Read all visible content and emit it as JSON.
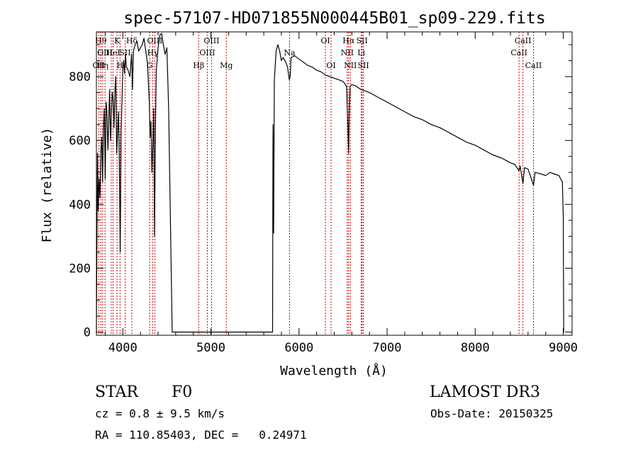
{
  "chart_data": {
    "type": "line",
    "title": "spec-57107-HD071855N000445B01_sp09-229.fits",
    "xlabel": "Wavelength (Å)",
    "ylabel": "Flux (relative)",
    "xlim": [
      3700,
      9100
    ],
    "ylim": [
      -10,
      940
    ],
    "x_ticks": [
      4000,
      5000,
      6000,
      7000,
      8000,
      9000
    ],
    "x_tick_labels": [
      "4000",
      "5000",
      "6000",
      "7000",
      "8000",
      "9000"
    ],
    "y_ticks": [
      0,
      200,
      400,
      600,
      800
    ],
    "y_tick_labels": [
      "0",
      "200",
      "400",
      "600",
      "800"
    ],
    "series": [
      {
        "name": "spectrum",
        "points": [
          [
            3700,
            0
          ],
          [
            3705,
            240
          ],
          [
            3712,
            560
          ],
          [
            3720,
            380
          ],
          [
            3730,
            480
          ],
          [
            3740,
            420
          ],
          [
            3750,
            560
          ],
          [
            3760,
            610
          ],
          [
            3770,
            470
          ],
          [
            3780,
            640
          ],
          [
            3790,
            700
          ],
          [
            3800,
            480
          ],
          [
            3810,
            720
          ],
          [
            3820,
            690
          ],
          [
            3830,
            570
          ],
          [
            3840,
            660
          ],
          [
            3850,
            760
          ],
          [
            3860,
            600
          ],
          [
            3870,
            680
          ],
          [
            3880,
            750
          ],
          [
            3890,
            730
          ],
          [
            3900,
            640
          ],
          [
            3910,
            760
          ],
          [
            3920,
            800
          ],
          [
            3930,
            560
          ],
          [
            3940,
            620
          ],
          [
            3950,
            690
          ],
          [
            3960,
            540
          ],
          [
            3970,
            250
          ],
          [
            3980,
            620
          ],
          [
            3990,
            720
          ],
          [
            4000,
            820
          ],
          [
            4010,
            850
          ],
          [
            4020,
            810
          ],
          [
            4030,
            870
          ],
          [
            4040,
            830
          ],
          [
            4060,
            820
          ],
          [
            4080,
            800
          ],
          [
            4100,
            870
          ],
          [
            4110,
            760
          ],
          [
            4120,
            880
          ],
          [
            4140,
            900
          ],
          [
            4160,
            910
          ],
          [
            4180,
            880
          ],
          [
            4200,
            890
          ],
          [
            4220,
            900
          ],
          [
            4240,
            920
          ],
          [
            4260,
            880
          ],
          [
            4280,
            840
          ],
          [
            4300,
            720
          ],
          [
            4310,
            610
          ],
          [
            4320,
            660
          ],
          [
            4330,
            500
          ],
          [
            4340,
            580
          ],
          [
            4350,
            700
          ],
          [
            4360,
            300
          ],
          [
            4370,
            650
          ],
          [
            4380,
            820
          ],
          [
            4400,
            890
          ],
          [
            4420,
            930
          ],
          [
            4440,
            935
          ],
          [
            4460,
            900
          ],
          [
            4480,
            870
          ],
          [
            4500,
            890
          ],
          [
            4520,
            700
          ],
          [
            4540,
            350
          ],
          [
            4560,
            0
          ],
          [
            5700,
            0
          ],
          [
            5705,
            650
          ],
          [
            5712,
            310
          ],
          [
            5720,
            790
          ],
          [
            5740,
            880
          ],
          [
            5760,
            900
          ],
          [
            5780,
            880
          ],
          [
            5800,
            850
          ],
          [
            5820,
            860
          ],
          [
            5850,
            845
          ],
          [
            5870,
            830
          ],
          [
            5890,
            790
          ],
          [
            5900,
            800
          ],
          [
            5910,
            860
          ],
          [
            5950,
            865
          ],
          [
            6000,
            855
          ],
          [
            6050,
            845
          ],
          [
            6100,
            835
          ],
          [
            6150,
            830
          ],
          [
            6200,
            820
          ],
          [
            6250,
            815
          ],
          [
            6300,
            805
          ],
          [
            6350,
            800
          ],
          [
            6400,
            795
          ],
          [
            6450,
            790
          ],
          [
            6500,
            785
          ],
          [
            6540,
            770
          ],
          [
            6555,
            640
          ],
          [
            6563,
            560
          ],
          [
            6570,
            680
          ],
          [
            6580,
            770
          ],
          [
            6600,
            775
          ],
          [
            6650,
            770
          ],
          [
            6700,
            760
          ],
          [
            6750,
            755
          ],
          [
            6800,
            750
          ],
          [
            6900,
            735
          ],
          [
            7000,
            720
          ],
          [
            7100,
            705
          ],
          [
            7200,
            690
          ],
          [
            7300,
            675
          ],
          [
            7400,
            665
          ],
          [
            7500,
            650
          ],
          [
            7600,
            640
          ],
          [
            7700,
            625
          ],
          [
            7800,
            610
          ],
          [
            7900,
            595
          ],
          [
            8000,
            585
          ],
          [
            8100,
            570
          ],
          [
            8200,
            555
          ],
          [
            8300,
            545
          ],
          [
            8400,
            530
          ],
          [
            8450,
            525
          ],
          [
            8498,
            505
          ],
          [
            8510,
            520
          ],
          [
            8542,
            465
          ],
          [
            8560,
            515
          ],
          [
            8600,
            510
          ],
          [
            8662,
            460
          ],
          [
            8680,
            500
          ],
          [
            8750,
            495
          ],
          [
            8800,
            490
          ],
          [
            8850,
            500
          ],
          [
            8900,
            495
          ],
          [
            8950,
            490
          ],
          [
            8990,
            470
          ],
          [
            9000,
            360
          ],
          [
            9005,
            0
          ]
        ]
      }
    ],
    "lines": [
      {
        "wavelength": 3727,
        "label": "OII",
        "row": 2
      },
      {
        "wavelength": 3751,
        "label": "Hθ",
        "row": 0
      },
      {
        "wavelength": 3771,
        "label": "Hη",
        "row": 2
      },
      {
        "wavelength": 3798,
        "label": "OIII",
        "row": 1
      },
      {
        "wavelength": 3869,
        "label": "",
        "row": 1
      },
      {
        "wavelength": 3889,
        "label": "HeI",
        "row": 1
      },
      {
        "wavelength": 3934,
        "label": "K",
        "row": 0
      },
      {
        "wavelength": 3968,
        "label": "H",
        "row": 2
      },
      {
        "wavelength": 4026,
        "label": "SII",
        "row": 1
      },
      {
        "wavelength": 4102,
        "label": "Hδ",
        "row": 0
      },
      {
        "wavelength": 4304,
        "label": "G",
        "row": 2
      },
      {
        "wavelength": 4340,
        "label": "Hγ",
        "row": 1
      },
      {
        "wavelength": 4363,
        "label": "OIII",
        "row": 0
      },
      {
        "wavelength": 4861,
        "label": "Hβ",
        "row": 2
      },
      {
        "wavelength": 4959,
        "label": "OIII",
        "row": 1
      },
      {
        "wavelength": 5007,
        "label": "OIII",
        "row": 0
      },
      {
        "wavelength": 5175,
        "label": "Mg",
        "row": 2
      },
      {
        "wavelength": 5893,
        "label": "Na",
        "row": 1
      },
      {
        "wavelength": 6300,
        "label": "OI",
        "row": 0
      },
      {
        "wavelength": 6364,
        "label": "OI",
        "row": 2
      },
      {
        "wavelength": 6548,
        "label": "NII",
        "row": 1
      },
      {
        "wavelength": 6563,
        "label": "Hα",
        "row": 0
      },
      {
        "wavelength": 6583,
        "label": "NII",
        "row": 2
      },
      {
        "wavelength": 6707,
        "label": "Li",
        "row": 1
      },
      {
        "wavelength": 6716,
        "label": "SII",
        "row": 0
      },
      {
        "wavelength": 6731,
        "label": "SII",
        "row": 2
      },
      {
        "wavelength": 8498,
        "label": "CaII",
        "row": 1
      },
      {
        "wavelength": 8542,
        "label": "CaII",
        "row": 0
      },
      {
        "wavelength": 8662,
        "label": "CaII",
        "row": 2
      }
    ],
    "line_color": "#cc0000"
  },
  "info": {
    "class_label": "STAR",
    "subclass": "F0",
    "survey": "LAMOST DR3",
    "redshift": "cz = 0.8 ± 9.5 km/s",
    "obs_date": "Obs-Date: 20150325",
    "coords": "RA = 110.85403, DEC =   0.24971"
  }
}
